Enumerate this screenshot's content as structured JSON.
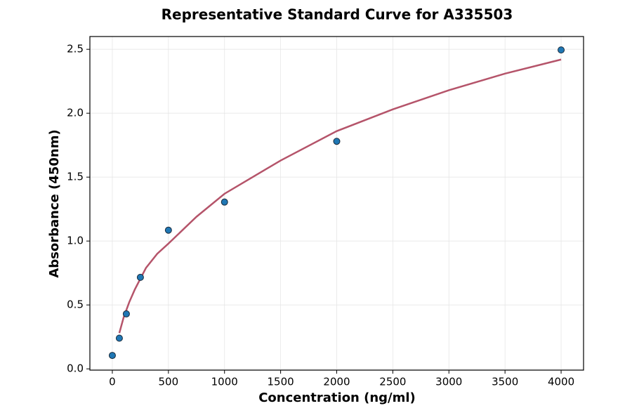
{
  "chart_data": {
    "type": "scatter",
    "title": "Representative Standard Curve for A335503",
    "x_label": "Concentration (ng/ml)",
    "y_label": "Absorbance (450nm)",
    "xlim": [
      -200,
      4200
    ],
    "ylim": [
      -0.01,
      2.6
    ],
    "xticks": [
      0,
      500,
      1000,
      1500,
      2000,
      2500,
      3000,
      3500,
      4000
    ],
    "yticks": [
      {
        "value": 0,
        "label": "0.0"
      },
      0.5,
      {
        "value": 1,
        "label": "1.0"
      },
      1.5,
      {
        "value": 2,
        "label": "2.0"
      },
      2.5
    ],
    "grid": true,
    "points": {
      "color": "#1f77b4",
      "x": [
        0,
        62.5,
        125,
        250,
        500,
        1000,
        2000,
        4000
      ],
      "values": [
        0.105,
        0.24,
        0.43,
        0.716,
        1.085,
        1.305,
        1.78,
        2.495
      ]
    },
    "fit": {
      "color": "#b5546a",
      "x": [
        62.5,
        100,
        150,
        200,
        300,
        400,
        500,
        750,
        1000,
        1500,
        2000,
        2500,
        3000,
        3500,
        4000
      ],
      "values": [
        0.28,
        0.4,
        0.52,
        0.62,
        0.79,
        0.9,
        0.98,
        1.19,
        1.37,
        1.63,
        1.86,
        2.03,
        2.18,
        2.31,
        2.42
      ]
    }
  }
}
